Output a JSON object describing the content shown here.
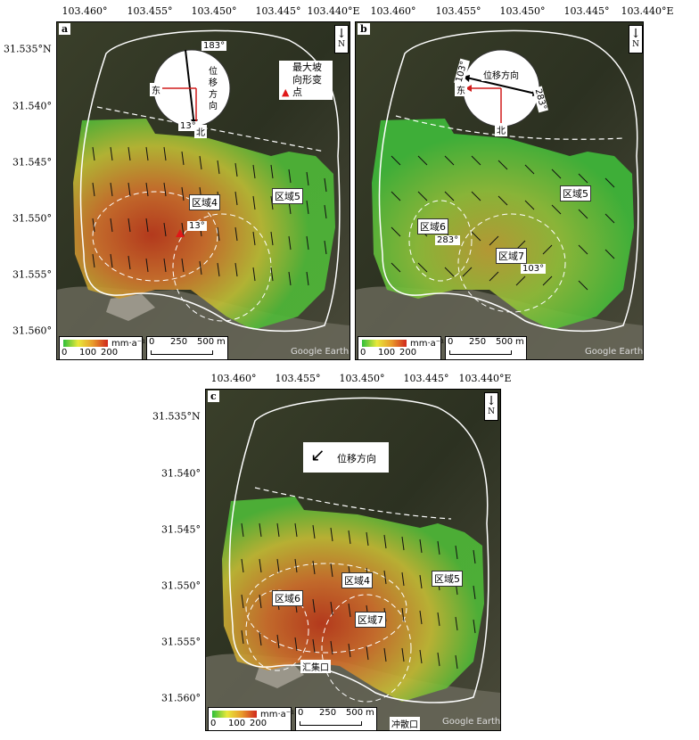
{
  "lon_ticks": [
    "103.460°",
    "103.455°",
    "103.450°",
    "103.445°",
    "103.440°E"
  ],
  "lat_ticks": [
    "31.535°N",
    "31.540°",
    "31.545°",
    "31.550°",
    "31.555°",
    "31.560°"
  ],
  "north_label": "N",
  "legend": {
    "min": "0",
    "mid": "100",
    "max": "200",
    "unit": "mm·a⁻¹",
    "colors": [
      "#2fbf3a",
      "#e8e83a",
      "#e89a2a",
      "#d0281e"
    ]
  },
  "scale": {
    "z": "0",
    "m1": "250",
    "m2": "500",
    "unit": "m"
  },
  "source": "Google Earth",
  "panel_a": {
    "label": "a",
    "deg_top": "183°",
    "deg_bottom": "13°",
    "east": "东",
    "north": "北",
    "dir_text": "位移方向",
    "max_slope": "最大坡向形变点",
    "zone4": "区域4",
    "zone5": "区域5",
    "angle": "13°"
  },
  "panel_b": {
    "label": "b",
    "deg_left": "103°",
    "deg_right": "283°",
    "east": "东",
    "north": "北",
    "dir_text": "位移方向",
    "zone5": "区域5",
    "zone6": "区域6",
    "zone7": "区域7",
    "angle6": "283°",
    "angle7": "103°"
  },
  "panel_c": {
    "label": "c",
    "dir_text": "位移方向",
    "zone4": "区域4",
    "zone5": "区域5",
    "zone6": "区域6",
    "zone7": "区域7",
    "place1": "汇集口",
    "place2": "冲散口"
  }
}
